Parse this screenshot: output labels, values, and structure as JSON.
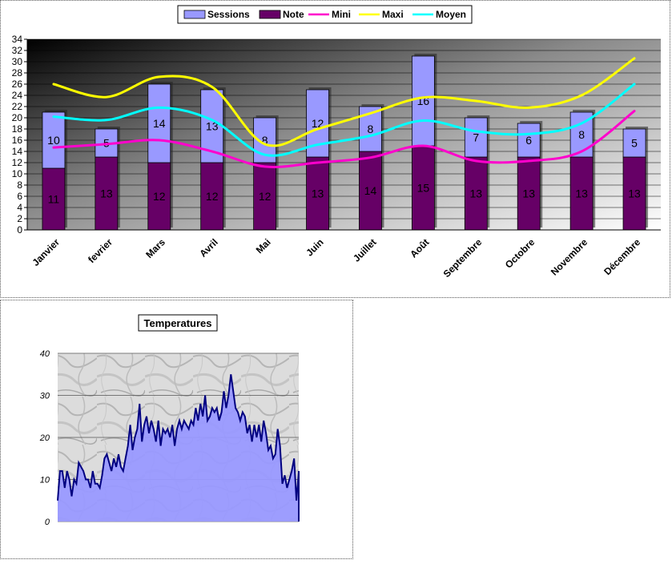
{
  "chart_data": [
    {
      "type": "bar",
      "stacked": true,
      "categories": [
        "Janvier",
        "fevrier",
        "Mars",
        "Avril",
        "Mai",
        "Juin",
        "Juillet",
        "Août",
        "Septembre",
        "Octobre",
        "Novembre",
        "Décembre"
      ],
      "series": [
        {
          "name": "Sessions",
          "kind": "bar",
          "color": "#9999ff",
          "values": [
            10,
            5,
            14,
            13,
            8,
            12,
            8,
            16,
            7,
            6,
            8,
            5
          ]
        },
        {
          "name": "Note",
          "kind": "bar",
          "color": "#660066",
          "values": [
            11,
            13,
            12,
            12,
            12,
            13,
            14,
            15,
            13,
            13,
            13,
            13
          ]
        },
        {
          "name": "Mini",
          "kind": "line",
          "color": "#ff00cc",
          "values": [
            14.7,
            15.3,
            16,
            14,
            11.3,
            12,
            12.9,
            15,
            12.3,
            12.3,
            14,
            21.2
          ]
        },
        {
          "name": "Maxi",
          "kind": "line",
          "color": "#ffff00",
          "values": [
            26,
            23.7,
            27.3,
            25.5,
            15.3,
            18,
            20.8,
            23.6,
            23,
            21.8,
            24,
            30.6
          ]
        },
        {
          "name": "Moyen",
          "kind": "line",
          "color": "#00ffff",
          "values": [
            20.2,
            19.6,
            21.8,
            19.6,
            13.4,
            15.2,
            16.8,
            19.5,
            17.6,
            17.1,
            19,
            26
          ]
        }
      ],
      "yticks": [
        0,
        2,
        4,
        6,
        8,
        10,
        12,
        14,
        16,
        18,
        20,
        22,
        24,
        26,
        28,
        30,
        32,
        34
      ],
      "ylim": [
        0,
        34
      ],
      "legend": "top-center",
      "grid": true
    },
    {
      "type": "area",
      "title": "Temperatures",
      "color": "#9999ff",
      "line_color": "#000080",
      "ylim": [
        0,
        40
      ],
      "yticks": [
        0,
        10,
        20,
        30,
        40
      ],
      "grid": true,
      "values": [
        5,
        12,
        12,
        8,
        12,
        10,
        6,
        10,
        9,
        14,
        13,
        12,
        10,
        10,
        8,
        12,
        9,
        9,
        8,
        11,
        15,
        16,
        14,
        12,
        15,
        13,
        16,
        13,
        12,
        15,
        18,
        23,
        17,
        20,
        22,
        28,
        19,
        23,
        25,
        21,
        24,
        22,
        19,
        24,
        18,
        22,
        21,
        22,
        20,
        23,
        18,
        22,
        24,
        22,
        24,
        23,
        22,
        24,
        23,
        27,
        24,
        28,
        25,
        30,
        24,
        25,
        27,
        26,
        27,
        24,
        26,
        31,
        27,
        30,
        35,
        31,
        27,
        26,
        24,
        26,
        25,
        21,
        23,
        19,
        23,
        20,
        23,
        19,
        24,
        21,
        17,
        18,
        15,
        16,
        22,
        18,
        9,
        11,
        8,
        10,
        12,
        15,
        5,
        12
      ]
    }
  ]
}
